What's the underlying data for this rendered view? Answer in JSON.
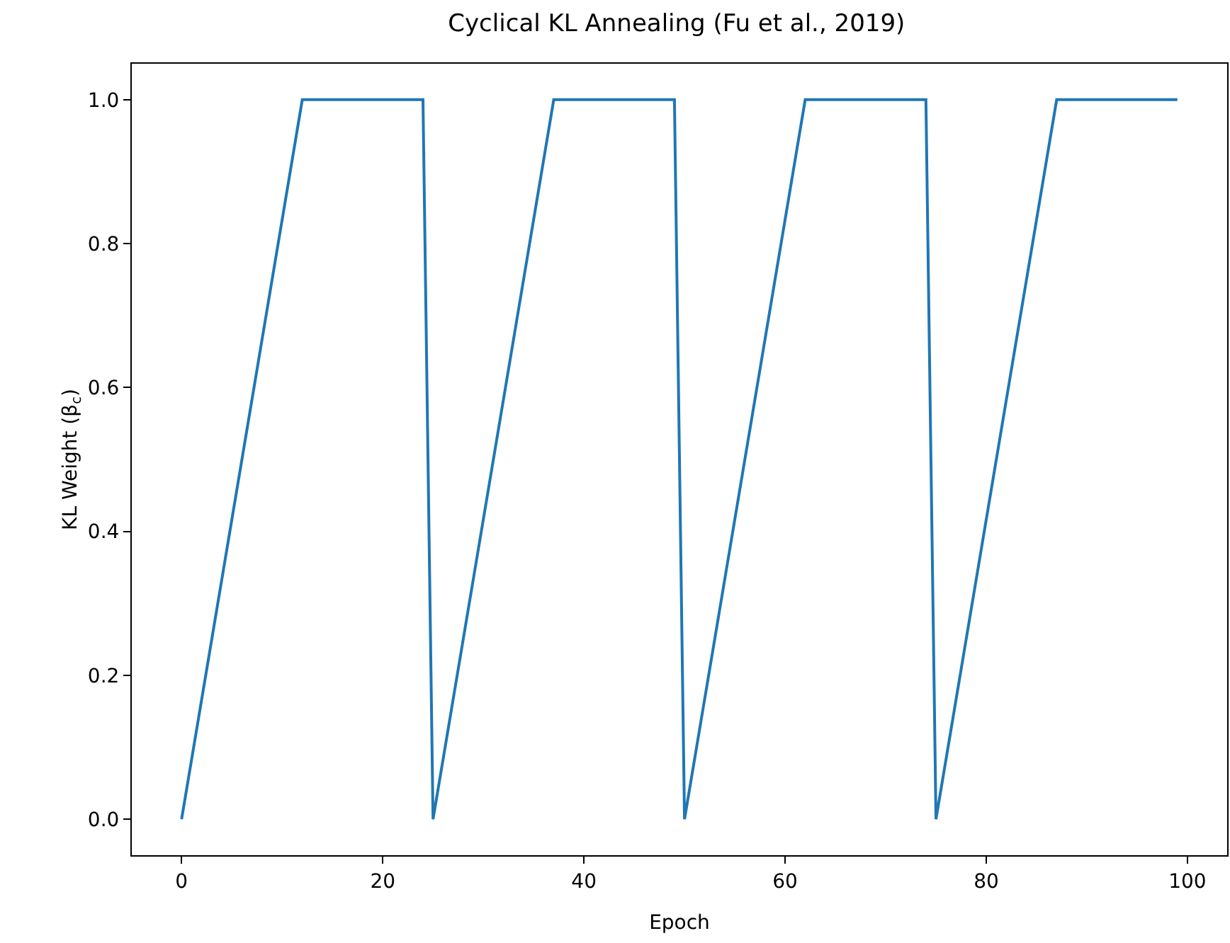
{
  "chart_data": {
    "type": "line",
    "title": "Cyclical KL Annealing (Fu et al., 2019)",
    "xlabel": "Epoch",
    "ylabel": "KL Weight (β$_{c}$)",
    "series": [
      {
        "color": "#1f77b4",
        "x": [
          0,
          12,
          24,
          25,
          37,
          49,
          50,
          62,
          74,
          75,
          87,
          99
        ],
        "values": [
          0,
          1,
          1,
          0,
          1,
          1,
          0,
          1,
          1,
          0,
          1,
          1
        ]
      }
    ],
    "xlim": [
      -4.95,
      103.95
    ],
    "xticks": [
      0,
      20,
      40,
      60,
      80,
      100
    ],
    "ylim": [
      -0.05,
      1.05
    ],
    "yticks": [
      {
        "value": 0,
        "label": "0.0"
      },
      {
        "value": 0.2,
        "label": "0.2"
      },
      {
        "value": 0.4,
        "label": "0.4"
      },
      {
        "value": 0.6,
        "label": "0.6"
      },
      {
        "value": 0.8,
        "label": "0.8"
      },
      {
        "value": 1,
        "label": "1.0"
      }
    ],
    "grid": false,
    "marker": "none",
    "line_style": "solid"
  }
}
